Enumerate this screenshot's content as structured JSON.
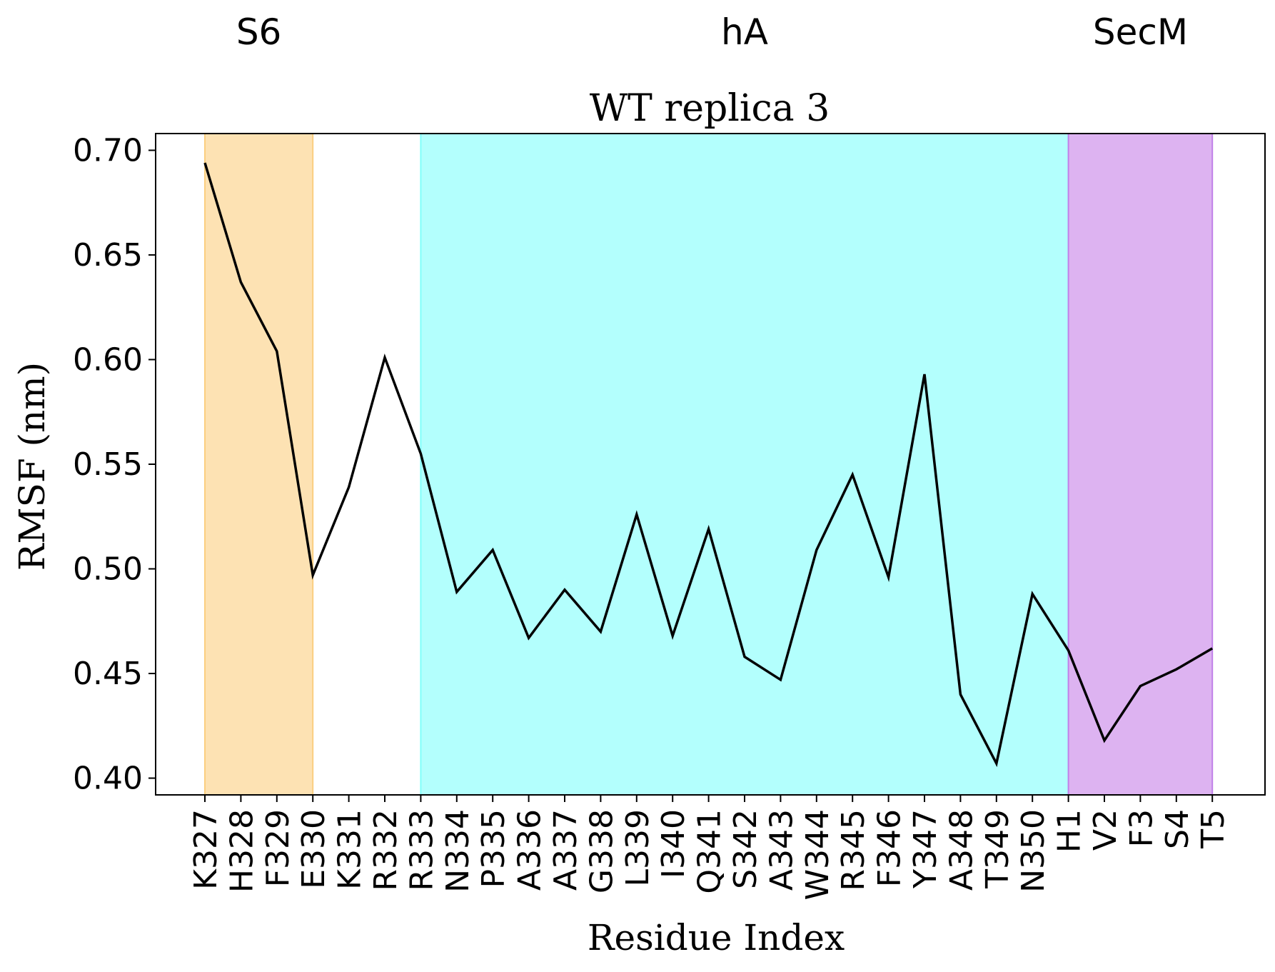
{
  "chart_data": {
    "type": "line",
    "title": "WT replica 3",
    "xlabel": "Residue Index",
    "ylabel": "RMSF (nm)",
    "ylim": [
      0.392,
      0.708
    ],
    "yticks": [
      0.4,
      0.45,
      0.5,
      0.55,
      0.6,
      0.65,
      0.7
    ],
    "grid": false,
    "categories": [
      "K327",
      "H328",
      "F329",
      "E330",
      "K331",
      "R332",
      "R333",
      "N334",
      "P335",
      "A336",
      "A337",
      "G338",
      "L339",
      "I340",
      "Q341",
      "S342",
      "A343",
      "W344",
      "R345",
      "F346",
      "Y347",
      "A348",
      "T349",
      "N350",
      "H1",
      "V2",
      "F3",
      "S4",
      "T5"
    ],
    "series": [
      {
        "values": [
          0.694,
          0.637,
          0.604,
          0.497,
          0.539,
          0.601,
          0.555,
          0.489,
          0.509,
          0.467,
          0.49,
          0.47,
          0.526,
          0.468,
          0.519,
          0.458,
          0.447,
          0.509,
          0.545,
          0.496,
          0.593,
          0.44,
          0.407,
          0.488,
          0.461,
          0.418,
          0.444,
          0.452,
          0.462
        ],
        "color": "#000000"
      }
    ],
    "regions": [
      {
        "label": "S6",
        "from": "K327",
        "to": "E330",
        "color": "#fde2b3",
        "edge": "#fbcf80"
      },
      {
        "label": "hA",
        "from": "R333",
        "to": "H1",
        "color": "#b3fffd",
        "edge": "#80fffb"
      },
      {
        "label": "SecM",
        "from": "H1",
        "to": "T5",
        "color": "#ddb3f1",
        "edge": "#c080e8"
      }
    ]
  }
}
